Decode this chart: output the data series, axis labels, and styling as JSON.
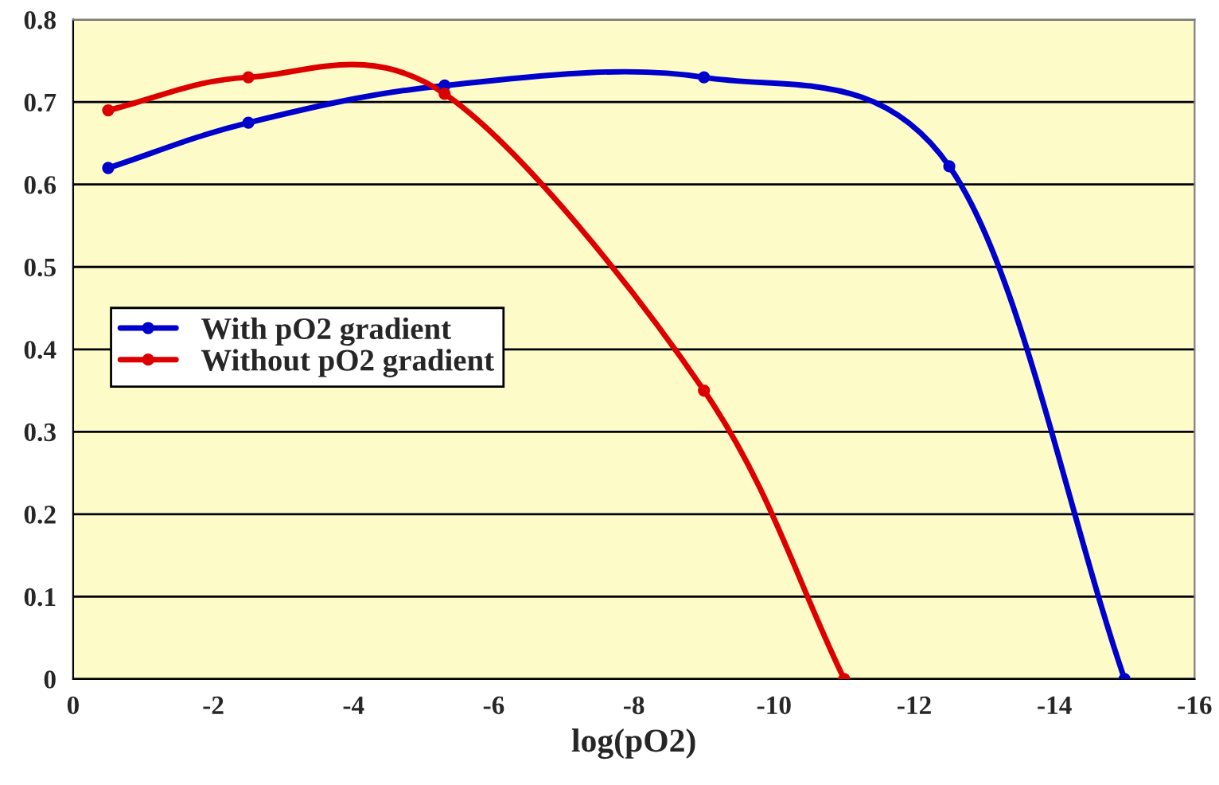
{
  "chart_data": {
    "type": "line",
    "xlabel": "log(pO2)",
    "xlim": [
      0,
      -16
    ],
    "xticks": [
      0,
      -2,
      -4,
      -6,
      -8,
      -10,
      -12,
      -14,
      -16
    ],
    "ylim": [
      0,
      0.8
    ],
    "yticks": [
      0,
      0.1,
      0.2,
      0.3,
      0.4,
      0.5,
      0.6,
      0.7,
      0.8
    ],
    "grid": "y",
    "legend": "left",
    "marker": "circle",
    "line_style": "solid",
    "series": [
      {
        "name": "With pO2 gradient",
        "color": "#0000cc",
        "x": [
          -0.5,
          -2.5,
          -5.3,
          -9,
          -12.5,
          -15
        ],
        "values": [
          0.62,
          0.675,
          0.72,
          0.73,
          0.622,
          0
        ]
      },
      {
        "name": "Without pO2 gradient",
        "color": "#dd0000",
        "x": [
          -0.5,
          -2.5,
          -5.3,
          -9,
          -11
        ],
        "values": [
          0.69,
          0.73,
          0.71,
          0.35,
          0
        ]
      }
    ]
  }
}
